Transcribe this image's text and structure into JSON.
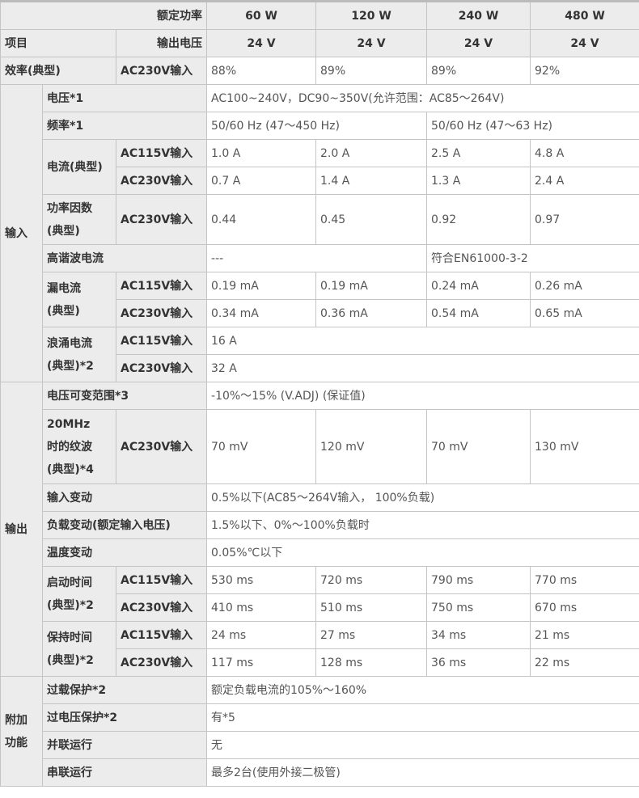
{
  "header": {
    "rated_power": "额定功率",
    "powers": [
      "60 W",
      "120 W",
      "240 W",
      "480 W"
    ],
    "item": "项目",
    "output_voltage": "输出电压",
    "voltages": [
      "24 V",
      "24 V",
      "24 V",
      "24 V"
    ]
  },
  "efficiency": {
    "label": "效率(典型)",
    "cond": "AC230V输入",
    "values": [
      "88%",
      "89%",
      "89%",
      "92%"
    ]
  },
  "input": {
    "group": "输入",
    "voltage": {
      "label": "电压*1",
      "value": "AC100~240V，DC90~350V(允许范围：AC85～264V)"
    },
    "frequency": {
      "label": "频率*1",
      "values": [
        "50/60 Hz (47～450 Hz)",
        "50/60 Hz (47～63 Hz)"
      ]
    },
    "current": {
      "label": "电流(典型)",
      "ac115": "AC115V输入",
      "v115": [
        "1.0 A",
        "2.0 A",
        "2.5 A",
        "4.8 A"
      ],
      "ac230": "AC230V输入",
      "v230": [
        "0.7 A",
        "1.4 A",
        "1.3 A",
        "2.4 A"
      ]
    },
    "pf": {
      "label1": "功率因数",
      "label2": "(典型)",
      "cond": "AC230V输入",
      "values": [
        "0.44",
        "0.45",
        "0.92",
        "0.97"
      ]
    },
    "harmonic": {
      "label": "高谐波电流",
      "values": [
        "---",
        "符合EN61000-3-2"
      ]
    },
    "leakage": {
      "label1": "漏电流",
      "label2": "(典型)",
      "ac115": "AC115V输入",
      "v115": [
        "0.19 mA",
        "0.19 mA",
        "0.24 mA",
        "0.26 mA"
      ],
      "ac230": "AC230V输入",
      "v230": [
        "0.34 mA",
        "0.36 mA",
        "0.54 mA",
        "0.65 mA"
      ]
    },
    "inrush": {
      "label1": "浪涌电流",
      "label2": "(典型)*2",
      "ac115": "AC115V输入",
      "v115": "16 A",
      "ac230": "AC230V输入",
      "v230": "32 A"
    }
  },
  "output": {
    "group": "输出",
    "vadj": {
      "label": "电压可变范围*3",
      "value": "-10%～15% (V.ADJ) (保证值)"
    },
    "ripple": {
      "label1": "20MHz",
      "label2": "时的纹波",
      "label3": "(典型)*4",
      "cond": "AC230V输入",
      "values": [
        "70 mV",
        "120 mV",
        "70 mV",
        "130 mV"
      ]
    },
    "input_var": {
      "label": "输入变动",
      "value": "0.5%以下(AC85～264V输入， 100%负载)"
    },
    "load_var": {
      "label": "负载变动(额定输入电压)",
      "value": "1.5%以下、0%～100%负载时"
    },
    "temp_var": {
      "label": "温度变动",
      "value": "0.05%℃以下"
    },
    "startup": {
      "label1": "启动时间",
      "label2": "(典型)*2",
      "ac115": "AC115V输入",
      "v115": [
        "530 ms",
        "720 ms",
        "790 ms",
        "770 ms"
      ],
      "ac230": "AC230V输入",
      "v230": [
        "410 ms",
        "510 ms",
        "750 ms",
        "670 ms"
      ]
    },
    "hold": {
      "label1": "保持时间",
      "label2": "(典型)*2",
      "ac115": "AC115V输入",
      "v115": [
        "24 ms",
        "27 ms",
        "34 ms",
        "21 ms"
      ],
      "ac230": "AC230V输入",
      "v230": [
        "117 ms",
        "128 ms",
        "36 ms",
        "22 ms"
      ]
    }
  },
  "additional": {
    "group1": "附加",
    "group2": "功能",
    "overload": {
      "label": "过载保护*2",
      "value": "额定负载电流的105%～160%"
    },
    "overvoltage": {
      "label": "过电压保护*2",
      "value": "有*5"
    },
    "parallel": {
      "label": "并联运行",
      "value": "无"
    },
    "series": {
      "label": "串联运行",
      "value": "最多2台(使用外接二极管)"
    }
  }
}
